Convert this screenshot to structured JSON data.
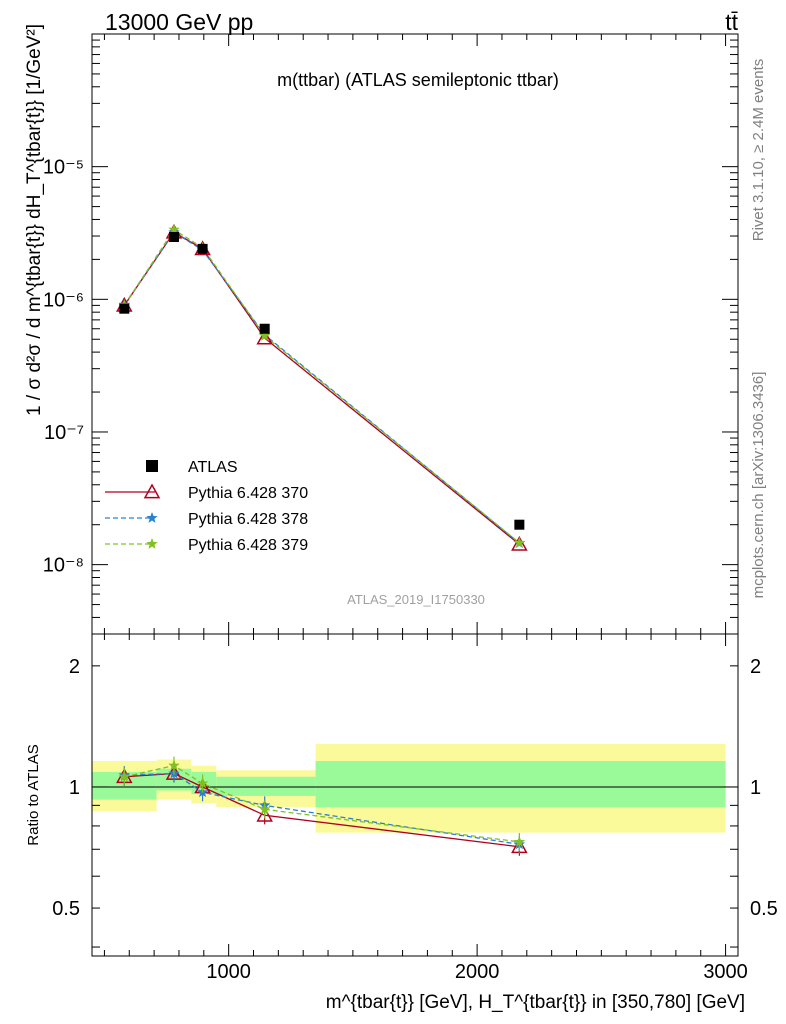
{
  "header": {
    "energy_label": "13000 GeV pp",
    "process_label": "tt̄"
  },
  "side_labels": {
    "rivet": "Rivet 3.1.10, ≥ 2.4M events",
    "mcplots": "mcplots.cern.ch [arXiv:1306.3436]"
  },
  "chart_data": [
    {
      "type": "scatter",
      "title": "m(ttbar) (ATLAS semileptonic ttbar)",
      "analysis_label": "ATLAS_2019_I1750330",
      "ylabel": "1 / σ d²σ / d m^{tbar{t}} dH_T^{tbar{t}} [1/GeV²]",
      "xlabel": "m^{tbar{t}} [GeV], H_T^{tbar{t}} in [350,780] [GeV]",
      "yscale": "log",
      "xlim": [
        450,
        3050
      ],
      "ylim": [
        3e-09,
        0.0001
      ],
      "grid": false,
      "legend_position": "lower-left",
      "x_ticks": [
        1000,
        2000,
        3000
      ],
      "y_ticks": [
        {
          "value": 1e-05,
          "label": "10⁻⁵"
        },
        {
          "value": 1e-06,
          "label": "10⁻⁶"
        },
        {
          "value": 1e-07,
          "label": "10⁻⁷"
        },
        {
          "value": 1e-08,
          "label": "10⁻⁸"
        }
      ],
      "x": [
        580,
        780,
        895,
        1145,
        2170
      ],
      "series": [
        {
          "name": "ATLAS",
          "marker": "square",
          "color": "#000000",
          "values": [
            8.5e-07,
            2.95e-06,
            2.4e-06,
            6e-07,
            2e-08
          ]
        },
        {
          "name": "Pythia 6.428 370",
          "marker": "triangle",
          "line": "solid",
          "color": "#b0001e",
          "values": [
            9e-07,
            3.2e-06,
            2.4e-06,
            5.1e-07,
            1.42e-08
          ]
        },
        {
          "name": "Pythia 6.428 378",
          "marker": "star",
          "line": "dashed",
          "color": "#2a80d0",
          "values": [
            9.1e-07,
            3.2e-06,
            2.35e-06,
            5.4e-07,
            1.45e-08
          ]
        },
        {
          "name": "Pythia 6.428 379",
          "marker": "star",
          "line": "dashed",
          "color": "#80c020",
          "values": [
            9e-07,
            3.35e-06,
            2.45e-06,
            5.3e-07,
            1.46e-08
          ]
        }
      ]
    },
    {
      "type": "scatter",
      "ylabel": "Ratio to ATLAS",
      "yscale": "log",
      "xlim": [
        450,
        3050
      ],
      "ylim": [
        0.38,
        2.4
      ],
      "y_ticks": [
        {
          "value": 0.5,
          "label": "0.5"
        },
        {
          "value": 1,
          "label": "1"
        },
        {
          "value": 2,
          "label": "2"
        }
      ],
      "bands": [
        {
          "x": [
            450,
            710
          ],
          "inner": [
            0.93,
            1.09
          ],
          "outer": [
            0.87,
            1.16
          ]
        },
        {
          "x": [
            710,
            850
          ],
          "inner": [
            0.98,
            1.11
          ],
          "outer": [
            0.93,
            1.17
          ]
        },
        {
          "x": [
            850,
            950
          ],
          "inner": [
            0.96,
            1.09
          ],
          "outer": [
            0.91,
            1.13
          ]
        },
        {
          "x": [
            950,
            1350
          ],
          "inner": [
            0.95,
            1.06
          ],
          "outer": [
            0.89,
            1.1
          ]
        },
        {
          "x": [
            1350,
            3000
          ],
          "inner": [
            0.89,
            1.16
          ],
          "outer": [
            0.77,
            1.28
          ]
        }
      ],
      "band_colors": {
        "inner": "#9afa9a",
        "outer": "#fafa9a"
      },
      "x": [
        580,
        780,
        895,
        1145,
        2170
      ],
      "series": [
        {
          "name": "Pythia 6.428 370",
          "color": "#b0001e",
          "values": [
            1.06,
            1.08,
            1.0,
            0.85,
            0.71
          ]
        },
        {
          "name": "Pythia 6.428 378",
          "color": "#2a80d0",
          "values": [
            1.07,
            1.08,
            0.97,
            0.9,
            0.72
          ]
        },
        {
          "name": "Pythia 6.428 379",
          "color": "#80c020",
          "values": [
            1.06,
            1.13,
            1.02,
            0.88,
            0.73
          ]
        }
      ]
    }
  ]
}
